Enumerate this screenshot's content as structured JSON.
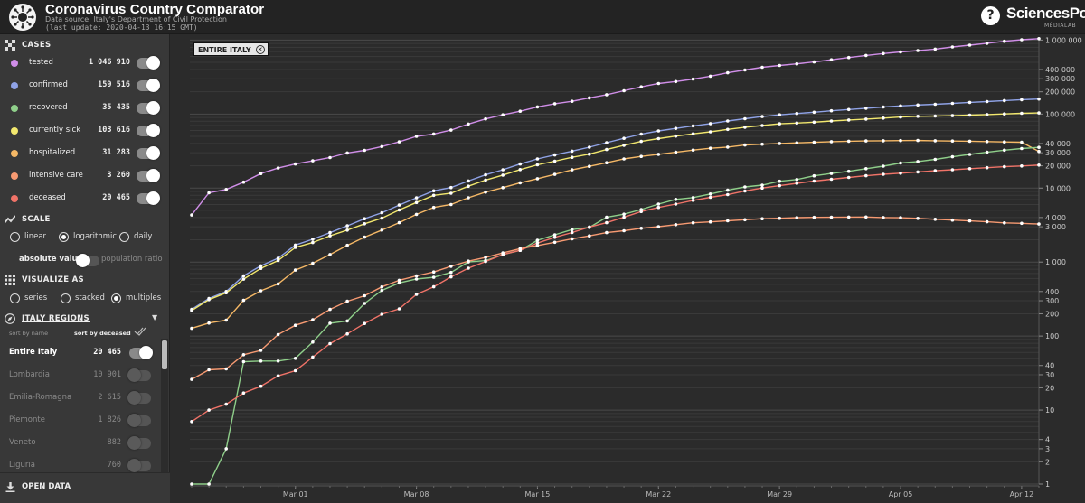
{
  "header": {
    "title": "Coronavirus Country Comparator",
    "source": "Data source: Italy's Department of Civil Protection",
    "last_update": "(last update: 2020-04-13 16:15 GMT)",
    "brand": "SciencesPo",
    "brand_sub": "MÉDIALAB",
    "help_label": "?"
  },
  "sidebar": {
    "cases_title": "CASES",
    "cases": [
      {
        "label": "tested",
        "value": "1 046 910",
        "color": "#d08ee8",
        "on": true
      },
      {
        "label": "confirmed",
        "value": "159 516",
        "color": "#8fa2e6",
        "on": true
      },
      {
        "label": "recovered",
        "value": "35 435",
        "color": "#8fcf8a",
        "on": true
      },
      {
        "label": "currently sick",
        "value": "103 616",
        "color": "#f2e86e",
        "on": true
      },
      {
        "label": "hospitalized",
        "value": "31 283",
        "color": "#f5b866",
        "on": true
      },
      {
        "label": "intensive care",
        "value": "3 260",
        "color": "#f79a72",
        "on": true
      },
      {
        "label": "deceased",
        "value": "20 465",
        "color": "#f07368",
        "on": true
      }
    ],
    "scale_title": "SCALE",
    "scale_options": [
      "linear",
      "logarithmic",
      "daily"
    ],
    "scale_selected": "logarithmic",
    "absolute_label": "absolute values",
    "ratio_label": "population ratio",
    "visualize_title": "VISUALIZE AS",
    "visualize_options": [
      "series",
      "stacked",
      "multiples"
    ],
    "visualize_selected": "multiples",
    "regions_title": "ITALY REGIONS",
    "sort_by_name": "sort by name",
    "sort_by_deceased": "sort by deceased",
    "regions": [
      {
        "label": "Entire Italy",
        "value": "20 465",
        "on": true
      },
      {
        "label": "Lombardia",
        "value": "10 901",
        "on": false
      },
      {
        "label": "Emilia-Romagna",
        "value": "2 615",
        "on": false
      },
      {
        "label": "Piemonte",
        "value": "1 826",
        "on": false
      },
      {
        "label": "Veneto",
        "value": "882",
        "on": false
      },
      {
        "label": "Liguria",
        "value": "760",
        "on": false
      }
    ],
    "open_data_label": "OPEN DATA"
  },
  "chart_tag": "ENTIRE ITALY",
  "chart_data": {
    "type": "line",
    "y_scale": "log",
    "ylim": [
      1,
      1100000
    ],
    "grid": true,
    "x_tick_labels": [
      "Mar 01",
      "Mar 08",
      "Mar 15",
      "Mar 22",
      "Mar 29",
      "Apr 05",
      "Apr 12"
    ],
    "x_tick_dates": [
      "2020-03-01",
      "2020-03-08",
      "2020-03-15",
      "2020-03-22",
      "2020-03-29",
      "2020-04-05",
      "2020-04-12"
    ],
    "y_tick_labels": [
      "1",
      "2",
      "3",
      "4",
      "10",
      "20",
      "30",
      "40",
      "100",
      "200",
      "300",
      "400",
      "1 000",
      "3 000",
      "4 000",
      "10 000",
      "20 000",
      "30 000",
      "40 000",
      "100 000",
      "200 000",
      "300 000",
      "400 000",
      "1 000 000"
    ],
    "y_tick_values": [
      1,
      2,
      3,
      4,
      10,
      20,
      30,
      40,
      100,
      200,
      300,
      400,
      1000,
      3000,
      4000,
      10000,
      20000,
      30000,
      40000,
      100000,
      200000,
      300000,
      400000,
      1000000
    ],
    "x": [
      "2020-02-24",
      "2020-02-25",
      "2020-02-26",
      "2020-02-27",
      "2020-02-28",
      "2020-02-29",
      "2020-03-01",
      "2020-03-02",
      "2020-03-03",
      "2020-03-04",
      "2020-03-05",
      "2020-03-06",
      "2020-03-07",
      "2020-03-08",
      "2020-03-09",
      "2020-03-10",
      "2020-03-11",
      "2020-03-12",
      "2020-03-13",
      "2020-03-14",
      "2020-03-15",
      "2020-03-16",
      "2020-03-17",
      "2020-03-18",
      "2020-03-19",
      "2020-03-20",
      "2020-03-21",
      "2020-03-22",
      "2020-03-23",
      "2020-03-24",
      "2020-03-25",
      "2020-03-26",
      "2020-03-27",
      "2020-03-28",
      "2020-03-29",
      "2020-03-30",
      "2020-03-31",
      "2020-04-01",
      "2020-04-02",
      "2020-04-03",
      "2020-04-04",
      "2020-04-05",
      "2020-04-06",
      "2020-04-07",
      "2020-04-08",
      "2020-04-09",
      "2020-04-10",
      "2020-04-11",
      "2020-04-12",
      "2020-04-13"
    ],
    "series": [
      {
        "name": "tested",
        "color": "#d08ee8",
        "values": [
          4324,
          8623,
          9587,
          12014,
          15695,
          18661,
          21127,
          23345,
          25856,
          29837,
          32362,
          36359,
          42062,
          49937,
          53826,
          60761,
          73154,
          86011,
          97488,
          109170,
          124899,
          137962,
          148657,
          165541,
          182777,
          206886,
          233222,
          258402,
          275468,
          296964,
          324445,
          361060,
          394079,
          429526,
          454030,
          477359,
          506968,
          541423,
          581232,
          619849,
          657224,
          691461,
          721732,
          755445,
          807125,
          853369,
          906864,
          963473,
          1010193,
          1046910
        ]
      },
      {
        "name": "confirmed",
        "color": "#8fa2e6",
        "values": [
          229,
          322,
          400,
          650,
          888,
          1128,
          1694,
          2036,
          2502,
          3089,
          3858,
          4636,
          5883,
          7375,
          9172,
          10149,
          12462,
          15113,
          17660,
          21157,
          24747,
          27980,
          31506,
          35713,
          41035,
          47021,
          53578,
          59138,
          63927,
          69176,
          74386,
          80539,
          86498,
          92472,
          97689,
          101739,
          105792,
          110574,
          115242,
          119827,
          124632,
          128948,
          132547,
          135586,
          139422,
          143626,
          147577,
          152271,
          156363,
          159516
        ]
      },
      {
        "name": "currently sick",
        "color": "#f2e86e",
        "values": [
          221,
          311,
          385,
          588,
          821,
          1049,
          1577,
          1835,
          2263,
          2706,
          3296,
          3916,
          5061,
          6387,
          7985,
          8514,
          10590,
          12839,
          14955,
          17750,
          20603,
          23073,
          26062,
          28710,
          33190,
          37860,
          42681,
          46638,
          50418,
          54030,
          57521,
          62013,
          66414,
          70065,
          73880,
          75528,
          77635,
          80572,
          83049,
          85388,
          88274,
          91246,
          93187,
          94067,
          95262,
          96877,
          98273,
          100269,
          102253,
          103616
        ]
      },
      {
        "name": "hospitalized",
        "color": "#f5b866",
        "values": [
          127,
          150,
          164,
          304,
          409,
          506,
          778,
          965,
          1263,
          1682,
          2172,
          2707,
          3403,
          4404,
          5467,
          5990,
          7394,
          8820,
          10138,
          11782,
          13372,
          15298,
          17634,
          19646,
          22008,
          24750,
          26788,
          28565,
          30476,
          32567,
          34542,
          35826,
          38150,
          39092,
          40063,
          40839,
          41578,
          42324,
          42911,
          43325,
          43609,
          43753,
          43910,
          43600,
          43175,
          42931,
          42518,
          42022,
          41697,
          31283
        ]
      },
      {
        "name": "recovered",
        "color": "#8fcf8a",
        "values": [
          1,
          1,
          3,
          45,
          46,
          46,
          50,
          83,
          149,
          160,
          276,
          414,
          523,
          589,
          622,
          724,
          1004,
          1045,
          1258,
          1439,
          1966,
          2335,
          2749,
          2941,
          4025,
          4440,
          5129,
          6072,
          7024,
          7432,
          8326,
          9362,
          10361,
          10950,
          12384,
          13030,
          14620,
          15729,
          16847,
          18278,
          19758,
          21815,
          22837,
          24392,
          26491,
          28470,
          30455,
          32534,
          34211,
          35435
        ]
      },
      {
        "name": "deceased",
        "color": "#f07368",
        "values": [
          7,
          10,
          12,
          17,
          21,
          29,
          34,
          52,
          79,
          107,
          148,
          197,
          233,
          366,
          463,
          631,
          827,
          1016,
          1266,
          1441,
          1809,
          2158,
          2503,
          2978,
          3405,
          4032,
          4825,
          5476,
          6077,
          6820,
          7503,
          8165,
          9134,
          10023,
          10779,
          11591,
          12428,
          13155,
          13915,
          14681,
          15362,
          15887,
          16523,
          17127,
          17669,
          18279,
          18849,
          19468,
          19899,
          20465
        ]
      },
      {
        "name": "intensive care",
        "color": "#f79a72",
        "values": [
          26,
          35,
          36,
          56,
          64,
          105,
          140,
          166,
          229,
          295,
          351,
          462,
          567,
          650,
          733,
          877,
          1028,
          1153,
          1328,
          1518,
          1672,
          1851,
          2060,
          2257,
          2498,
          2655,
          2857,
          3009,
          3204,
          3396,
          3489,
          3612,
          3732,
          3856,
          3906,
          3981,
          4023,
          4035,
          4053,
          4068,
          3994,
          3977,
          3898,
          3792,
          3693,
          3605,
          3497,
          3381,
          3343,
          3260
        ]
      }
    ]
  }
}
